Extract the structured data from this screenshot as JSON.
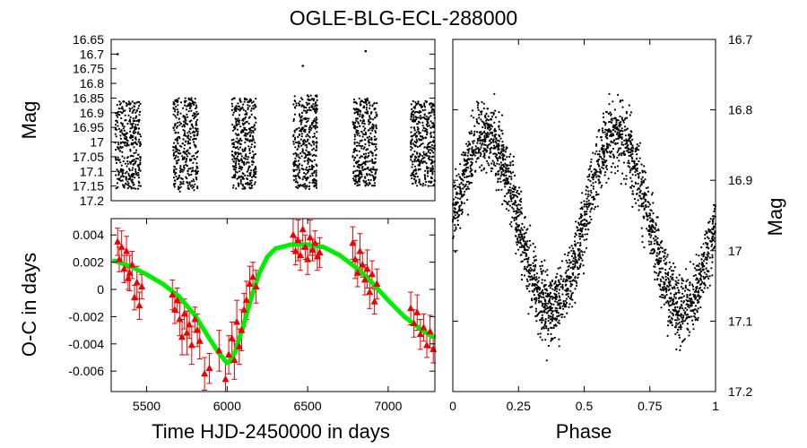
{
  "figure": {
    "title": "OGLE-BLG-ECL-288000"
  },
  "chart_data": [
    {
      "id": "lightcurve_time",
      "type": "scatter",
      "title": "",
      "xlabel": "",
      "ylabel": "Mag",
      "xlim": [
        5280,
        7290
      ],
      "ylim": [
        16.65,
        17.2
      ],
      "y_inverted": true,
      "yticks": [
        "16.65",
        "16.7",
        "16.75",
        "16.8",
        "16.85",
        "16.9",
        "16.95",
        "17",
        "17.05",
        "17.1",
        "17.15",
        "17.2"
      ],
      "xticks": [],
      "seasons": [
        {
          "start": 5305,
          "end": 5465,
          "mag_min": 16.86,
          "mag_max": 17.16
        },
        {
          "start": 5665,
          "end": 5820,
          "mag_min": 16.85,
          "mag_max": 17.17
        },
        {
          "start": 6030,
          "end": 6180,
          "mag_min": 16.85,
          "mag_max": 17.16
        },
        {
          "start": 6410,
          "end": 6560,
          "mag_min": 16.84,
          "mag_max": 17.16
        },
        {
          "start": 6780,
          "end": 6930,
          "mag_min": 16.85,
          "mag_max": 17.15
        },
        {
          "start": 7140,
          "end": 7290,
          "mag_min": 16.86,
          "mag_max": 17.15
        }
      ],
      "outliers": [
        {
          "x": 5320,
          "y": 16.7
        },
        {
          "x": 6470,
          "y": 16.74
        },
        {
          "x": 6860,
          "y": 16.69
        }
      ],
      "color": "#000000"
    },
    {
      "id": "o_minus_c",
      "type": "scatter",
      "title": "",
      "xlabel": "Time HJD-2450000 in days",
      "ylabel": "O-C in days",
      "xlim": [
        5280,
        7290
      ],
      "ylim": [
        -0.0075,
        0.0052
      ],
      "xticks": [
        5500,
        6000,
        6500,
        7000
      ],
      "xtick_labels": [
        "5500",
        "6000",
        "6500",
        "7000"
      ],
      "yticks": [
        0.004,
        0.002,
        0,
        -0.002,
        -0.004,
        -0.006
      ],
      "ytick_labels": [
        "0.004",
        "0.002",
        "0",
        "-0.002",
        "-0.004",
        "-0.006"
      ],
      "fit_curve": {
        "name": "fit",
        "color": "#00ee00",
        "x": [
          5300,
          5400,
          5500,
          5600,
          5700,
          5800,
          5900,
          5950,
          6000,
          6020,
          6050,
          6100,
          6150,
          6200,
          6250,
          6300,
          6400,
          6500,
          6600,
          6700,
          6800,
          6900,
          7000,
          7100,
          7200,
          7280
        ],
        "y": [
          0.0021,
          0.0017,
          0.0011,
          0.0004,
          -0.0005,
          -0.0019,
          -0.0038,
          -0.0047,
          -0.0054,
          -0.0053,
          -0.0046,
          -0.0027,
          -0.0006,
          0.0012,
          0.0024,
          0.003,
          0.0033,
          0.0033,
          0.0031,
          0.0025,
          0.0016,
          0.0005,
          -0.0008,
          -0.002,
          -0.0029,
          -0.0035
        ]
      },
      "points": {
        "name": "O-C measurements",
        "color": "#ee0000",
        "x": [
          5320,
          5330,
          5345,
          5360,
          5375,
          5385,
          5395,
          5410,
          5425,
          5440,
          5455,
          5470,
          5660,
          5675,
          5690,
          5705,
          5720,
          5735,
          5750,
          5765,
          5780,
          5800,
          5815,
          5830,
          5860,
          5890,
          5950,
          5990,
          6010,
          6030,
          6045,
          6060,
          6075,
          6090,
          6105,
          6120,
          6140,
          6160,
          6180,
          6410,
          6425,
          6440,
          6455,
          6470,
          6485,
          6500,
          6515,
          6530,
          6545,
          6560,
          6575,
          6780,
          6795,
          6810,
          6825,
          6840,
          6855,
          6870,
          6885,
          6900,
          6915,
          6930,
          7140,
          7160,
          7180,
          7200,
          7220,
          7240,
          7260,
          7280
        ],
        "y": [
          0.0035,
          0.0022,
          0.0031,
          0.0015,
          0.0028,
          0.0008,
          0.0012,
          0.0018,
          -0.0006,
          0.0005,
          -0.0012,
          0.0002,
          -0.0004,
          -0.0015,
          -0.0008,
          -0.0022,
          -0.0035,
          -0.0018,
          -0.0032,
          -0.0026,
          -0.0041,
          -0.0022,
          -0.003,
          -0.0038,
          -0.0062,
          -0.0058,
          -0.0045,
          -0.0066,
          -0.0048,
          -0.0036,
          -0.0052,
          -0.0024,
          -0.0042,
          -0.003,
          -0.0015,
          -0.0008,
          0.0004,
          0.0009,
          0.0002,
          0.004,
          0.0028,
          0.0036,
          0.0025,
          0.0044,
          0.0031,
          0.0022,
          0.0038,
          0.0029,
          0.0034,
          0.0024,
          0.0027,
          0.0034,
          0.0022,
          0.0012,
          0.0028,
          0.0018,
          0.0007,
          0.0015,
          -0.0002,
          0.0011,
          -0.0009,
          0.0004,
          -0.0014,
          -0.0025,
          -0.0017,
          -0.0033,
          -0.0028,
          -0.0041,
          -0.0031,
          -0.0044
        ],
        "yerr": [
          0.001,
          0.0009,
          0.0012,
          0.001,
          0.0011,
          0.0008,
          0.0013,
          0.001,
          0.0009,
          0.0012,
          0.001,
          0.0009,
          0.0011,
          0.001,
          0.0009,
          0.0012,
          0.0013,
          0.0011,
          0.0016,
          0.001,
          0.0014,
          0.0009,
          0.0012,
          0.0013,
          0.0012,
          0.0011,
          0.0015,
          0.0013,
          0.0014,
          0.0012,
          0.0014,
          0.0016,
          0.0013,
          0.0015,
          0.0012,
          0.0014,
          0.0013,
          0.0011,
          0.0012,
          0.0012,
          0.001,
          0.0015,
          0.0011,
          0.0014,
          0.0009,
          0.0011,
          0.0013,
          0.0008,
          0.0009,
          0.001,
          0.0011,
          0.0012,
          0.0014,
          0.001,
          0.0013,
          0.0009,
          0.0011,
          0.0014,
          0.0012,
          0.001,
          0.0009,
          0.0011,
          0.0012,
          0.001,
          0.0013,
          0.0011,
          0.001,
          0.0009,
          0.0012,
          0.001
        ]
      }
    },
    {
      "id": "phased_lightcurve",
      "type": "scatter",
      "title": "",
      "xlabel": "Phase",
      "ylabel": "Mag",
      "ylabel_side": "right",
      "xlim": [
        0,
        1
      ],
      "ylim": [
        16.7,
        17.2
      ],
      "y_inverted": true,
      "xticks": [
        0,
        0.25,
        0.5,
        0.75,
        1
      ],
      "xtick_labels": [
        "0",
        "0.25",
        "0.5",
        "0.75",
        "1"
      ],
      "yticks": [
        16.7,
        16.8,
        16.9,
        17,
        17.1,
        17.2
      ],
      "ytick_labels": [
        "16.7",
        "16.8",
        "16.9",
        "17",
        "17.1",
        "17.2"
      ],
      "model": {
        "mean_mag": 16.96,
        "amplitude": 0.125,
        "cycles": 2,
        "scatter": 0.045
      },
      "color": "#000000"
    }
  ]
}
